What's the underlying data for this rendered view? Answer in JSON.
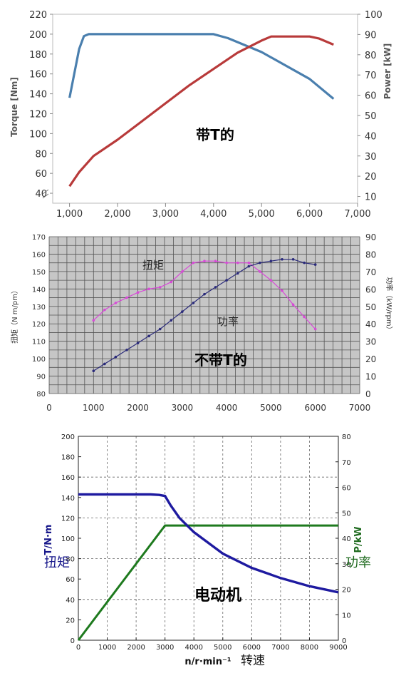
{
  "colors": {
    "c1_torque": "#4a7fae",
    "c1_power": "#b83a3a",
    "c2_bg": "#c6c6c6",
    "c2_torque": "#d74ad7",
    "c2_power": "#2a2a7a",
    "c3_torque": "#1e1aa0",
    "c3_power": "#1e7a1e",
    "c3_ylabel": "#16168a",
    "c3_y2label": "#1e6a1e"
  },
  "chart_data": [
    {
      "type": "line",
      "title": "带T的",
      "xlabel": "",
      "ylabel": "Torque [Nm]",
      "y2label": "Power [kW]",
      "xlim": [
        650,
        7000
      ],
      "ylim": [
        30,
        220
      ],
      "y2lim": [
        6.66667,
        100
      ],
      "x_ticks": [
        "1,000",
        "2,000",
        "3,000",
        "4,000",
        "5,000",
        "6,000",
        "7,000"
      ],
      "y_ticks": [
        "40",
        "60",
        "80",
        "100",
        "120",
        "140",
        "160",
        "180",
        "200",
        "220"
      ],
      "y2_ticks": [
        "10",
        "20",
        "30",
        "40",
        "50",
        "60",
        "70",
        "80",
        "90",
        "100"
      ],
      "grid": false,
      "series": [
        {
          "name": "",
          "axis": "left",
          "x": [
            1000,
            1200,
            1300,
            1400,
            2000,
            3000,
            4000,
            4300,
            5000,
            6000,
            6500
          ],
          "y": [
            136,
            185,
            198,
            200,
            200,
            200,
            200,
            196,
            182,
            155,
            135
          ]
        },
        {
          "name": "",
          "axis": "right",
          "x": [
            1000,
            1200,
            1500,
            2000,
            2500,
            3000,
            3500,
            4000,
            4500,
            5000,
            5200,
            5500,
            6000,
            6200,
            6500
          ],
          "y": [
            15,
            22,
            30,
            38,
            47,
            56,
            65,
            73,
            81,
            87,
            89,
            89,
            89,
            88,
            85
          ]
        }
      ]
    },
    {
      "type": "line",
      "title": "不带T的",
      "xlabel": "",
      "ylabel": "扭矩（N m/pm）",
      "y2label": "功率（kW/rpm）",
      "xlim": [
        0,
        7000
      ],
      "ylim": [
        80,
        170
      ],
      "y2lim": [
        0,
        90
      ],
      "x_ticks": [
        "0",
        "1000",
        "2000",
        "3000",
        "4000",
        "5000",
        "6000",
        "7000"
      ],
      "y_ticks": [
        "80",
        "90",
        "100",
        "110",
        "120",
        "130",
        "140",
        "150",
        "160",
        "170"
      ],
      "y2_ticks": [
        "0",
        "10",
        "20",
        "30",
        "40",
        "50",
        "60",
        "70",
        "80",
        "90"
      ],
      "grid": true,
      "annotations": [
        "扭矩",
        "功率"
      ],
      "series": [
        {
          "name": "扭矩",
          "axis": "left",
          "x": [
            1000,
            1250,
            1500,
            1750,
            2000,
            2250,
            2500,
            2750,
            3000,
            3250,
            3500,
            3750,
            4000,
            4250,
            4500,
            4750,
            5000,
            5250,
            5500,
            5750,
            6000
          ],
          "y": [
            122,
            128,
            132,
            135,
            138,
            140,
            141,
            144,
            150,
            155,
            156,
            156,
            155,
            155,
            155,
            150,
            145,
            139,
            131,
            124,
            117
          ]
        },
        {
          "name": "功率",
          "axis": "right",
          "x": [
            1000,
            1250,
            1500,
            1750,
            2000,
            2250,
            2500,
            2750,
            3000,
            3250,
            3500,
            3750,
            4000,
            4250,
            4500,
            4750,
            5000,
            5250,
            5500,
            5750,
            6000
          ],
          "y": [
            13,
            17,
            21,
            25,
            29,
            33,
            37,
            42,
            47,
            52,
            57,
            61,
            65,
            69,
            73,
            75,
            76,
            77,
            77,
            75,
            74
          ]
        }
      ]
    },
    {
      "type": "line",
      "title": "电动机",
      "xlabel": "n/r·min⁻¹",
      "xlabel_cn": "转速",
      "ylabel": "T/N·m",
      "ylabel_cn": "扭矩",
      "y2label": "P/kW",
      "y2label_cn": "功率",
      "xlim": [
        0,
        9000
      ],
      "ylim": [
        0,
        200
      ],
      "y2lim": [
        0,
        80
      ],
      "x_ticks": [
        "0",
        "1000",
        "2000",
        "3000",
        "4000",
        "5000",
        "6000",
        "7000",
        "8000",
        "9000"
      ],
      "y_ticks": [
        "0",
        "20",
        "40",
        "60",
        "80",
        "100",
        "120",
        "140",
        "160",
        "180",
        "200"
      ],
      "y2_ticks": [
        "0",
        "10",
        "20",
        "30",
        "40",
        "50",
        "60",
        "70",
        "80"
      ],
      "grid": true,
      "series": [
        {
          "name": "扭矩",
          "axis": "left",
          "x": [
            0,
            500,
            1000,
            2000,
            2500,
            2800,
            3000,
            3200,
            3500,
            4000,
            5000,
            6000,
            7000,
            8000,
            9000
          ],
          "y": [
            143,
            143,
            143,
            143,
            143,
            142.5,
            141.5,
            132,
            120,
            106,
            85,
            71,
            61,
            53,
            47
          ]
        },
        {
          "name": "功率",
          "axis": "right",
          "x": [
            0,
            3000,
            9000
          ],
          "y": [
            0,
            45,
            45
          ]
        }
      ]
    }
  ]
}
